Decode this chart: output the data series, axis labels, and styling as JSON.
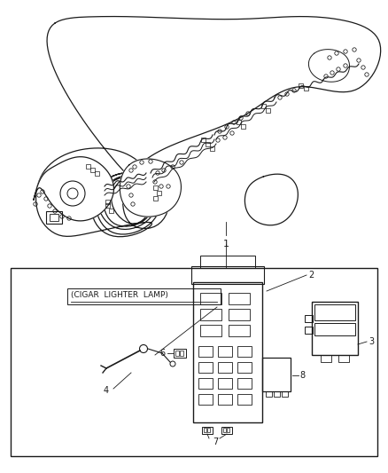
{
  "background_color": "#ffffff",
  "line_color": "#1a1a1a",
  "text_color": "#1a1a1a",
  "label_1": "1",
  "label_2": "2",
  "label_3": "3",
  "label_4": "4",
  "label_6": "6",
  "label_7": "7",
  "label_8": "8",
  "cigar_label": "(CIGAR  LIGHTER  LAMP)",
  "font_size_label": 7,
  "font_size_cigar": 6.5,
  "fig_width": 4.38,
  "fig_height": 5.33,
  "dpi": 100
}
